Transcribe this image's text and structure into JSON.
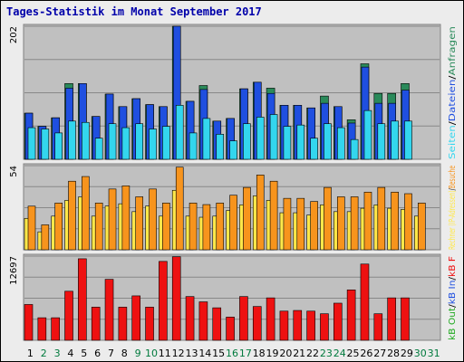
{
  "title": "Tages-Statistik im Monat September 2017",
  "colors": {
    "hits": "#2a8a5a",
    "files": "#1f4fe0",
    "pages": "#33d6ee",
    "visits": "#f7941d",
    "sites": "#ffe84a",
    "kbytes": "#ee1111",
    "day_normal": "#000000",
    "day_weekend": "#007a3d"
  },
  "chart_data": [
    {
      "type": "bar",
      "panel": "requests",
      "ymax_label": "202",
      "ylim": [
        0,
        202
      ],
      "legend": [
        {
          "text": "Anfragen",
          "color": "#2a8a5a"
        },
        {
          "text": "/",
          "color": "#000000"
        },
        {
          "text": "Dateien",
          "color": "#1f4fe0"
        },
        {
          "text": "/",
          "color": "#000000"
        },
        {
          "text": "Seiten",
          "color": "#33d6ee"
        }
      ],
      "categories": [
        "1",
        "2",
        "3",
        "4",
        "5",
        "6",
        "7",
        "8",
        "9",
        "10",
        "11",
        "12",
        "13",
        "14",
        "15",
        "16",
        "17",
        "18",
        "19",
        "20",
        "21",
        "22",
        "23",
        "24",
        "25",
        "26",
        "27",
        "28",
        "29",
        "30",
        "31"
      ],
      "series": [
        {
          "name": "Anfragen",
          "values": [
            70,
            50,
            63,
            115,
            115,
            65,
            99,
            80,
            92,
            83,
            80,
            202,
            88,
            112,
            58,
            62,
            107,
            117,
            108,
            82,
            82,
            78,
            96,
            80,
            60,
            145,
            100,
            100,
            115,
            0,
            0
          ]
        },
        {
          "name": "Dateien",
          "values": [
            70,
            50,
            63,
            108,
            115,
            65,
            99,
            80,
            92,
            83,
            80,
            202,
            88,
            106,
            58,
            62,
            107,
            117,
            100,
            82,
            82,
            78,
            85,
            80,
            55,
            140,
            85,
            85,
            105,
            0,
            0
          ]
        },
        {
          "name": "Seiten",
          "values": [
            48,
            46,
            40,
            58,
            56,
            32,
            54,
            48,
            54,
            46,
            50,
            82,
            40,
            62,
            38,
            28,
            54,
            64,
            68,
            50,
            52,
            32,
            54,
            48,
            30,
            74,
            54,
            58,
            58,
            0,
            0
          ]
        }
      ]
    },
    {
      "type": "bar",
      "panel": "visits",
      "ymax_label": "54",
      "ylim": [
        0,
        54
      ],
      "legend": [
        {
          "text": "Besuche",
          "color": "#f7941d"
        },
        {
          "text": "/",
          "color": "#000000"
        },
        {
          "text": "Rechner (IP-Adressen)",
          "color": "#ffe84a"
        }
      ],
      "categories": [
        "1",
        "2",
        "3",
        "4",
        "5",
        "6",
        "7",
        "8",
        "9",
        "10",
        "11",
        "12",
        "13",
        "14",
        "15",
        "16",
        "17",
        "18",
        "19",
        "20",
        "21",
        "22",
        "23",
        "24",
        "25",
        "26",
        "27",
        "28",
        "29",
        "30",
        "31"
      ],
      "series": [
        {
          "name": "Besuche",
          "values": [
            28,
            16,
            30,
            44,
            47,
            30,
            39,
            41,
            34,
            39,
            30,
            53,
            30,
            29,
            30,
            35,
            40,
            48,
            44,
            33,
            33,
            31,
            40,
            34,
            34,
            37,
            40,
            37,
            36,
            30,
            0
          ]
        },
        {
          "name": "Rechner (IP-Adressen)",
          "values": [
            28,
            16,
            30,
            44,
            47,
            30,
            39,
            41,
            34,
            39,
            30,
            53,
            30,
            29,
            30,
            35,
            40,
            48,
            44,
            33,
            33,
            31,
            40,
            34,
            34,
            37,
            40,
            37,
            36,
            30,
            0
          ]
        }
      ]
    },
    {
      "type": "bar",
      "panel": "traffic",
      "ymax_label": "12697",
      "ylim": [
        0,
        12697
      ],
      "legend": [
        {
          "text": "kB F",
          "color": "#ee1111"
        },
        {
          "text": "/",
          "color": "#000000"
        },
        {
          "text": "kB In",
          "color": "#1f4fe0"
        },
        {
          "text": "/",
          "color": "#000000"
        },
        {
          "text": "kB Out",
          "color": "#22aa22"
        }
      ],
      "categories": [
        "1",
        "2",
        "3",
        "4",
        "5",
        "6",
        "7",
        "8",
        "9",
        "10",
        "11",
        "12",
        "13",
        "14",
        "15",
        "16",
        "17",
        "18",
        "19",
        "20",
        "21",
        "22",
        "23",
        "24",
        "25",
        "26",
        "27",
        "28",
        "29",
        "30",
        "31"
      ],
      "series": [
        {
          "name": "kB F",
          "values": [
            5400,
            3400,
            3400,
            7400,
            12300,
            5000,
            9200,
            5000,
            6700,
            5000,
            11900,
            12600,
            6600,
            5800,
            4900,
            3500,
            6600,
            5100,
            6400,
            4400,
            4500,
            4400,
            4000,
            5600,
            7600,
            11500,
            4000,
            6400,
            6400,
            0,
            0
          ]
        }
      ]
    }
  ],
  "day_labels": [
    {
      "text": "1",
      "weekend": false
    },
    {
      "text": "2",
      "weekend": true
    },
    {
      "text": "3",
      "weekend": true
    },
    {
      "text": "4",
      "weekend": false
    },
    {
      "text": "5",
      "weekend": false
    },
    {
      "text": "6",
      "weekend": false
    },
    {
      "text": "7",
      "weekend": false
    },
    {
      "text": "8",
      "weekend": false
    },
    {
      "text": "9",
      "weekend": true
    },
    {
      "text": "10",
      "weekend": true
    },
    {
      "text": "11",
      "weekend": false
    },
    {
      "text": "12",
      "weekend": false
    },
    {
      "text": "13",
      "weekend": false
    },
    {
      "text": "14",
      "weekend": false
    },
    {
      "text": "15",
      "weekend": false
    },
    {
      "text": "16",
      "weekend": true
    },
    {
      "text": "17",
      "weekend": true
    },
    {
      "text": "18",
      "weekend": false
    },
    {
      "text": "19",
      "weekend": false
    },
    {
      "text": "20",
      "weekend": false
    },
    {
      "text": "21",
      "weekend": false
    },
    {
      "text": "22",
      "weekend": false
    },
    {
      "text": "23",
      "weekend": true
    },
    {
      "text": "24",
      "weekend": true
    },
    {
      "text": "25",
      "weekend": false
    },
    {
      "text": "26",
      "weekend": false
    },
    {
      "text": "27",
      "weekend": false
    },
    {
      "text": "28",
      "weekend": false
    },
    {
      "text": "29",
      "weekend": false
    },
    {
      "text": "30",
      "weekend": true
    },
    {
      "text": "31",
      "weekend": true
    }
  ]
}
